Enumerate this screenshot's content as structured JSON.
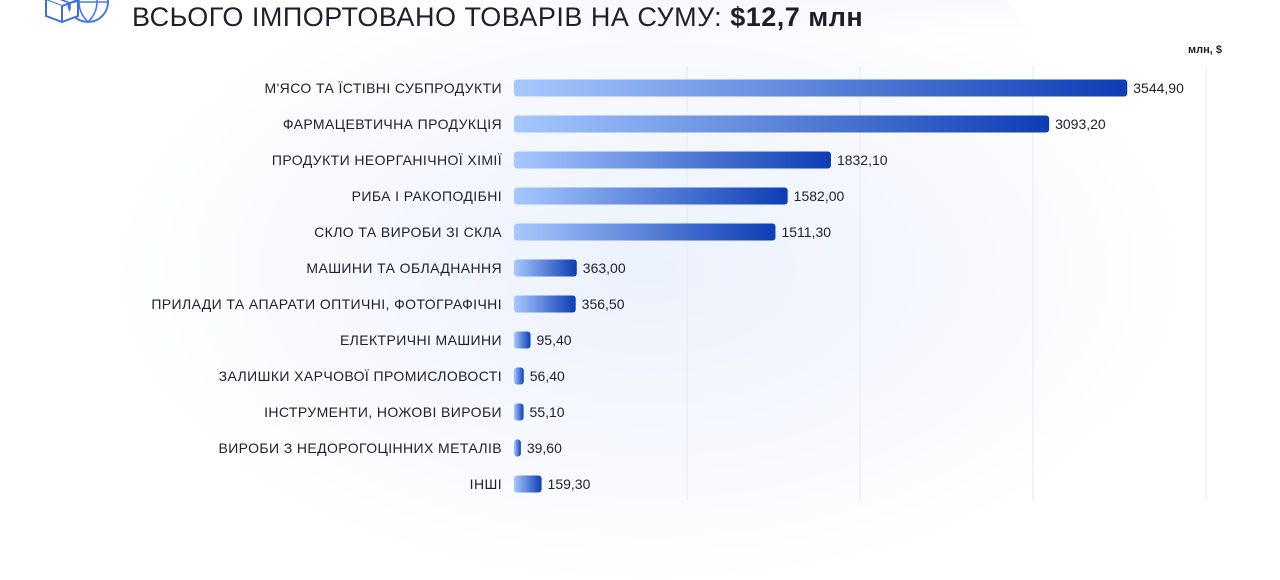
{
  "header": {
    "title_prefix": "ВСЬОГО ІМПОРТОВАНО ТОВАРІВ НА СУМУ: ",
    "title_total": "$12,7 млн",
    "logo_icon": "box-globe-icon"
  },
  "colors": {
    "bar_start": "#a7c8ff",
    "bar_end": "#0d3db5",
    "grid": "#e6e9f0",
    "text": "#1e1f2b"
  },
  "chart_data": {
    "type": "bar",
    "orientation": "horizontal",
    "unit": "млн, $",
    "categories": [
      "М'ЯСО ТА ЇСТІВНІ СУБПРОДУКТИ",
      "ФАРМАЦЕВТИЧНА ПРОДУКЦІЯ",
      "ПРОДУКТИ НЕОРГАНІЧНОЇ ХІМІЇ",
      "РИБА І РАКОПОДІБНІ",
      "СКЛО ТА ВИРОБИ ЗІ СКЛА",
      "МАШИНИ ТА ОБЛАДНАННЯ",
      "ПРИЛАДИ ТА АПАРАТИ ОПТИЧНІ, ФОТОГРАФІЧНІ",
      "ЕЛЕКТРИЧНІ МАШИНИ",
      "ЗАЛИШКИ ХАРЧОВОЇ ПРОМИСЛОВОСТІ",
      "ІНСТРУМЕНТИ, НОЖОВІ ВИРОБИ",
      "ВИРОБИ З НЕДОРОГОЦІННИХ МЕТАЛІВ",
      "ІНШІ"
    ],
    "values": [
      3544.9,
      3093.2,
      1832.1,
      1582.0,
      1511.3,
      363.0,
      356.5,
      95.4,
      56.4,
      55.1,
      39.6,
      159.3
    ],
    "value_labels": [
      "3544,90",
      "3093,20",
      "1832,10",
      "1582,00",
      "1511,30",
      "363,00",
      "356,50",
      "95,40",
      "56,40",
      "55,10",
      "39,60",
      "159,30"
    ],
    "xlim": [
      0,
      4000
    ],
    "grid_step": 1000,
    "grid": true,
    "legend": "none"
  }
}
